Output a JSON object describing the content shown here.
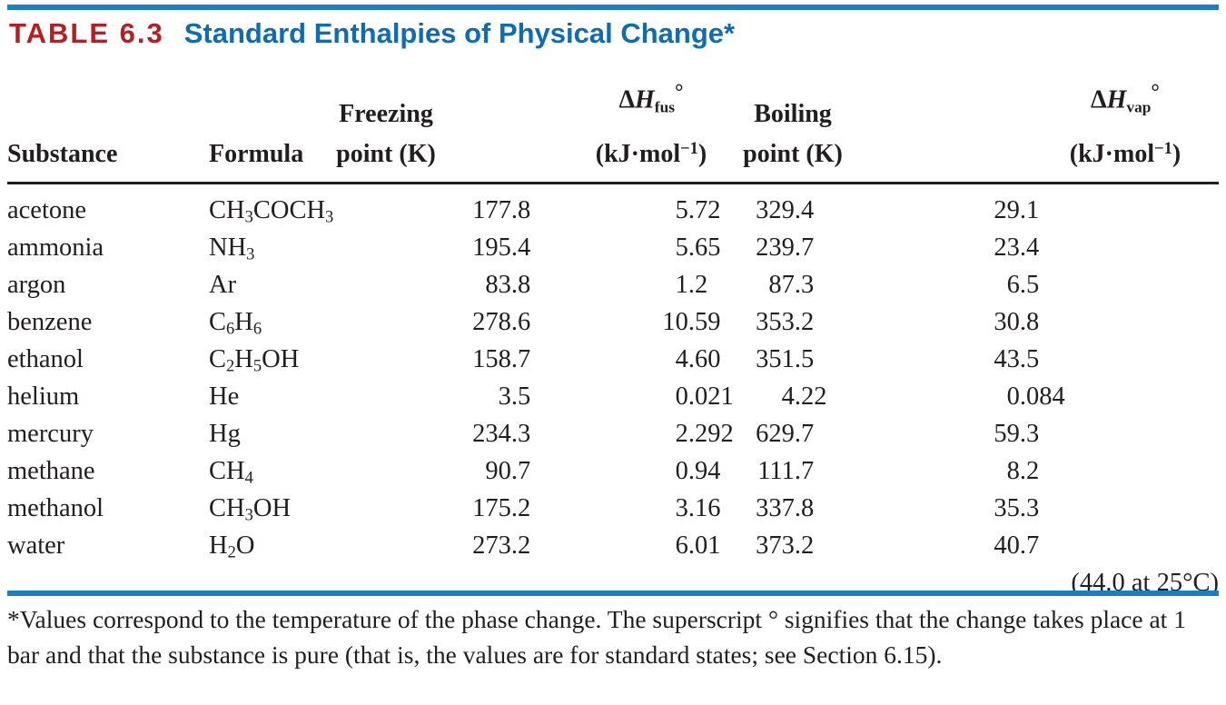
{
  "title": {
    "label": "TABLE 6.3",
    "text": "Standard Enthalpies of Physical Change*"
  },
  "colors": {
    "accent_red": "#b51f24",
    "accent_blue": "#0e6cb3",
    "rule_blue": "#1b7ec2",
    "text_black": "#221e1f"
  },
  "table": {
    "headers": {
      "substance": "Substance",
      "formula": "Formula",
      "freezing": {
        "line1": "Freezing",
        "line2": "point (K)"
      },
      "dh_fus": {
        "delta": "Δ",
        "h": "H",
        "sub": "fus",
        "deg": "°",
        "unit_pre": "(kJ·mol",
        "unit_sup": "−1",
        "unit_post": ")"
      },
      "boiling": {
        "line1": "Boiling",
        "line2": "point (K)"
      },
      "dh_vap": {
        "delta": "Δ",
        "h": "H",
        "sub": "vap",
        "deg": "°",
        "unit_pre": "(kJ·mol",
        "unit_sup": "−1",
        "unit_post": ")"
      }
    },
    "rows": [
      {
        "substance": "acetone",
        "formula": "CH3COCH3",
        "freezing_point": "177.8",
        "dh_fus": "5.72",
        "boiling_point": "329.4",
        "dh_vap": "29.1"
      },
      {
        "substance": "ammonia",
        "formula": "NH3",
        "freezing_point": "195.4",
        "dh_fus": "5.65",
        "boiling_point": "239.7",
        "dh_vap": "23.4"
      },
      {
        "substance": "argon",
        "formula": "Ar",
        "freezing_point": "83.8",
        "dh_fus": "1.2",
        "boiling_point": "87.3",
        "dh_vap": "6.5"
      },
      {
        "substance": "benzene",
        "formula": "C6H6",
        "freezing_point": "278.6",
        "dh_fus": "10.59",
        "boiling_point": "353.2",
        "dh_vap": "30.8"
      },
      {
        "substance": "ethanol",
        "formula": "C2H5OH",
        "freezing_point": "158.7",
        "dh_fus": "4.60",
        "boiling_point": "351.5",
        "dh_vap": "43.5"
      },
      {
        "substance": "helium",
        "formula": "He",
        "freezing_point": "3.5",
        "dh_fus": "0.021",
        "boiling_point": "4.22",
        "dh_vap": "0.084"
      },
      {
        "substance": "mercury",
        "formula": "Hg",
        "freezing_point": "234.3",
        "dh_fus": "2.292",
        "boiling_point": "629.7",
        "dh_vap": "59.3"
      },
      {
        "substance": "methane",
        "formula": "CH4",
        "freezing_point": "90.7",
        "dh_fus": "0.94",
        "boiling_point": "111.7",
        "dh_vap": "8.2"
      },
      {
        "substance": "methanol",
        "formula": "CH3OH",
        "freezing_point": "175.2",
        "dh_fus": "3.16",
        "boiling_point": "337.8",
        "dh_vap": "35.3"
      },
      {
        "substance": "water",
        "formula": "H2O",
        "freezing_point": "273.2",
        "dh_fus": "6.01",
        "boiling_point": "373.2",
        "dh_vap": "40.7"
      }
    ],
    "vap_note": "(44.0 at 25°C)"
  },
  "footnote": "*Values correspond to the temperature of the phase change. The superscript ° signifies that the change takes place at 1 bar and that the substance is pure (that is, the values are for standard states; see Section 6.15)."
}
